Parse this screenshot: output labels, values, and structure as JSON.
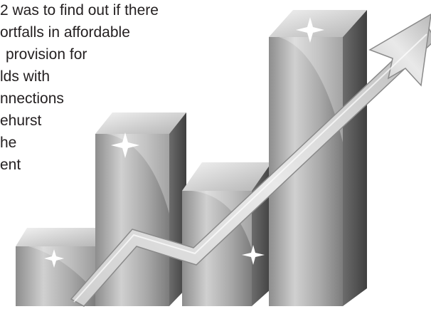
{
  "text_lines": [
    "2 was to find out if there",
    "ortfalls in affordable",
    "provision for",
    "lds with",
    "nnections",
    "ehurst",
    "he",
    "ent"
  ],
  "colors": {
    "background": "#ffffff",
    "text": "#231f20",
    "bar_light": "#dcdcdc",
    "bar_mid": "#9a9a9a",
    "bar_dark": "#5a5a5a",
    "arrow": "#bdbdbd"
  },
  "icon_names": [
    "bar-chart-icon",
    "rising-arrow-icon",
    "sparkle-icon"
  ]
}
